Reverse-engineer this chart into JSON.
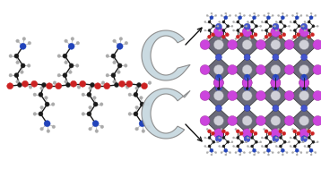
{
  "bg_color": "#ffffff",
  "figsize": [
    3.58,
    1.89
  ],
  "dpi": 100,
  "colors": {
    "C": "#1a1a1a",
    "N": "#2244bb",
    "O": "#cc2222",
    "H": "#aaaaaa",
    "Pb": "#d0d0d8",
    "Pb_edge": "#909098",
    "I_purple": "#cc44dd",
    "I_purple_edge": "#993399",
    "I_blue": "#4455cc",
    "I_blue_edge": "#2233aa",
    "oct_fill": "#5a5a6a",
    "oct_edge": "#222222",
    "arrow_fill": "#c8d8e0",
    "arrow_edge": "#888888"
  }
}
